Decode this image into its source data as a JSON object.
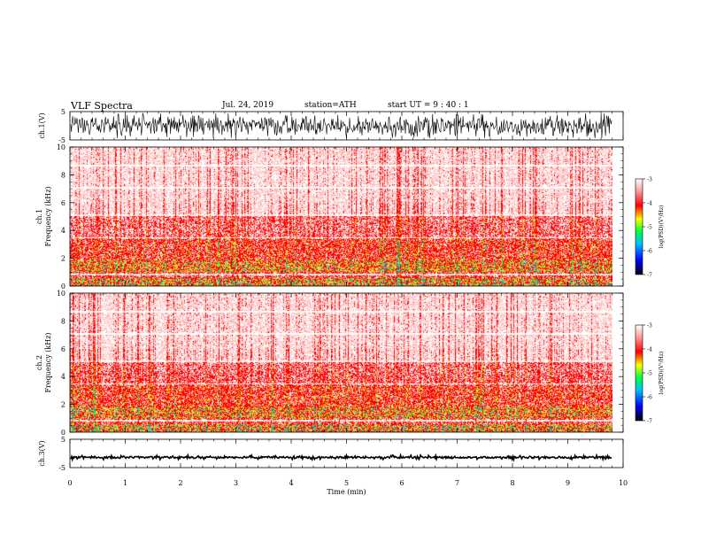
{
  "header": {
    "title": "VLF  Spectra",
    "date": "Jul.  24, 2019",
    "station": "station=ATH",
    "start": "start  UT  =    9  : 40 : 1"
  },
  "chart_data": [
    {
      "type": "line",
      "name": "ch1-waveform",
      "ylabel": "ch.1(V)",
      "ylim": [
        -5,
        5
      ],
      "yticks": [
        "5",
        "-5"
      ],
      "xlim": [
        0,
        10
      ]
    },
    {
      "type": "heatmap",
      "name": "ch1-spectrogram",
      "ylabel_channel": "ch.1",
      "ylabel": "Frequency  (kHz)",
      "ylim": [
        0,
        10
      ],
      "yticks": [
        "0",
        "2",
        "4",
        "6",
        "8",
        "10"
      ],
      "xlim": [
        0,
        10
      ],
      "data_extent_min": 9.8,
      "colorbar": {
        "label": "log(PSD)(V²/Hz)",
        "range": [
          -7,
          -3
        ],
        "ticks": [
          "-3",
          "-4",
          "-5",
          "-6",
          "-7"
        ]
      }
    },
    {
      "type": "heatmap",
      "name": "ch2-spectrogram",
      "ylabel_channel": "ch.2",
      "ylabel": "Frequency  (kHz)",
      "ylim": [
        0,
        10
      ],
      "yticks": [
        "0",
        "2",
        "4",
        "6",
        "8",
        "10"
      ],
      "xlim": [
        0,
        10
      ],
      "data_extent_min": 9.8,
      "colorbar": {
        "label": "log(PSD)(V²/Hz)",
        "range": [
          -7,
          -3
        ],
        "ticks": [
          "-3",
          "-4",
          "-5",
          "-6",
          "-7"
        ]
      }
    },
    {
      "type": "line",
      "name": "ch3-waveform",
      "ylabel": "ch.3(V)",
      "ylim": [
        -5,
        5
      ],
      "yticks": [
        "5",
        "-5"
      ],
      "xlim": [
        0,
        10
      ],
      "xlabel": "Time  (min)",
      "xticks": [
        "0",
        "1",
        "2",
        "3",
        "4",
        "5",
        "6",
        "7",
        "8",
        "9",
        "10"
      ]
    }
  ],
  "colors": {
    "background": "#ffffff",
    "axis": "#000000",
    "colormap": [
      "#000000",
      "#0000ff",
      "#00c0ff",
      "#00ff40",
      "#ffff00",
      "#ff0000",
      "#ffffff"
    ]
  }
}
